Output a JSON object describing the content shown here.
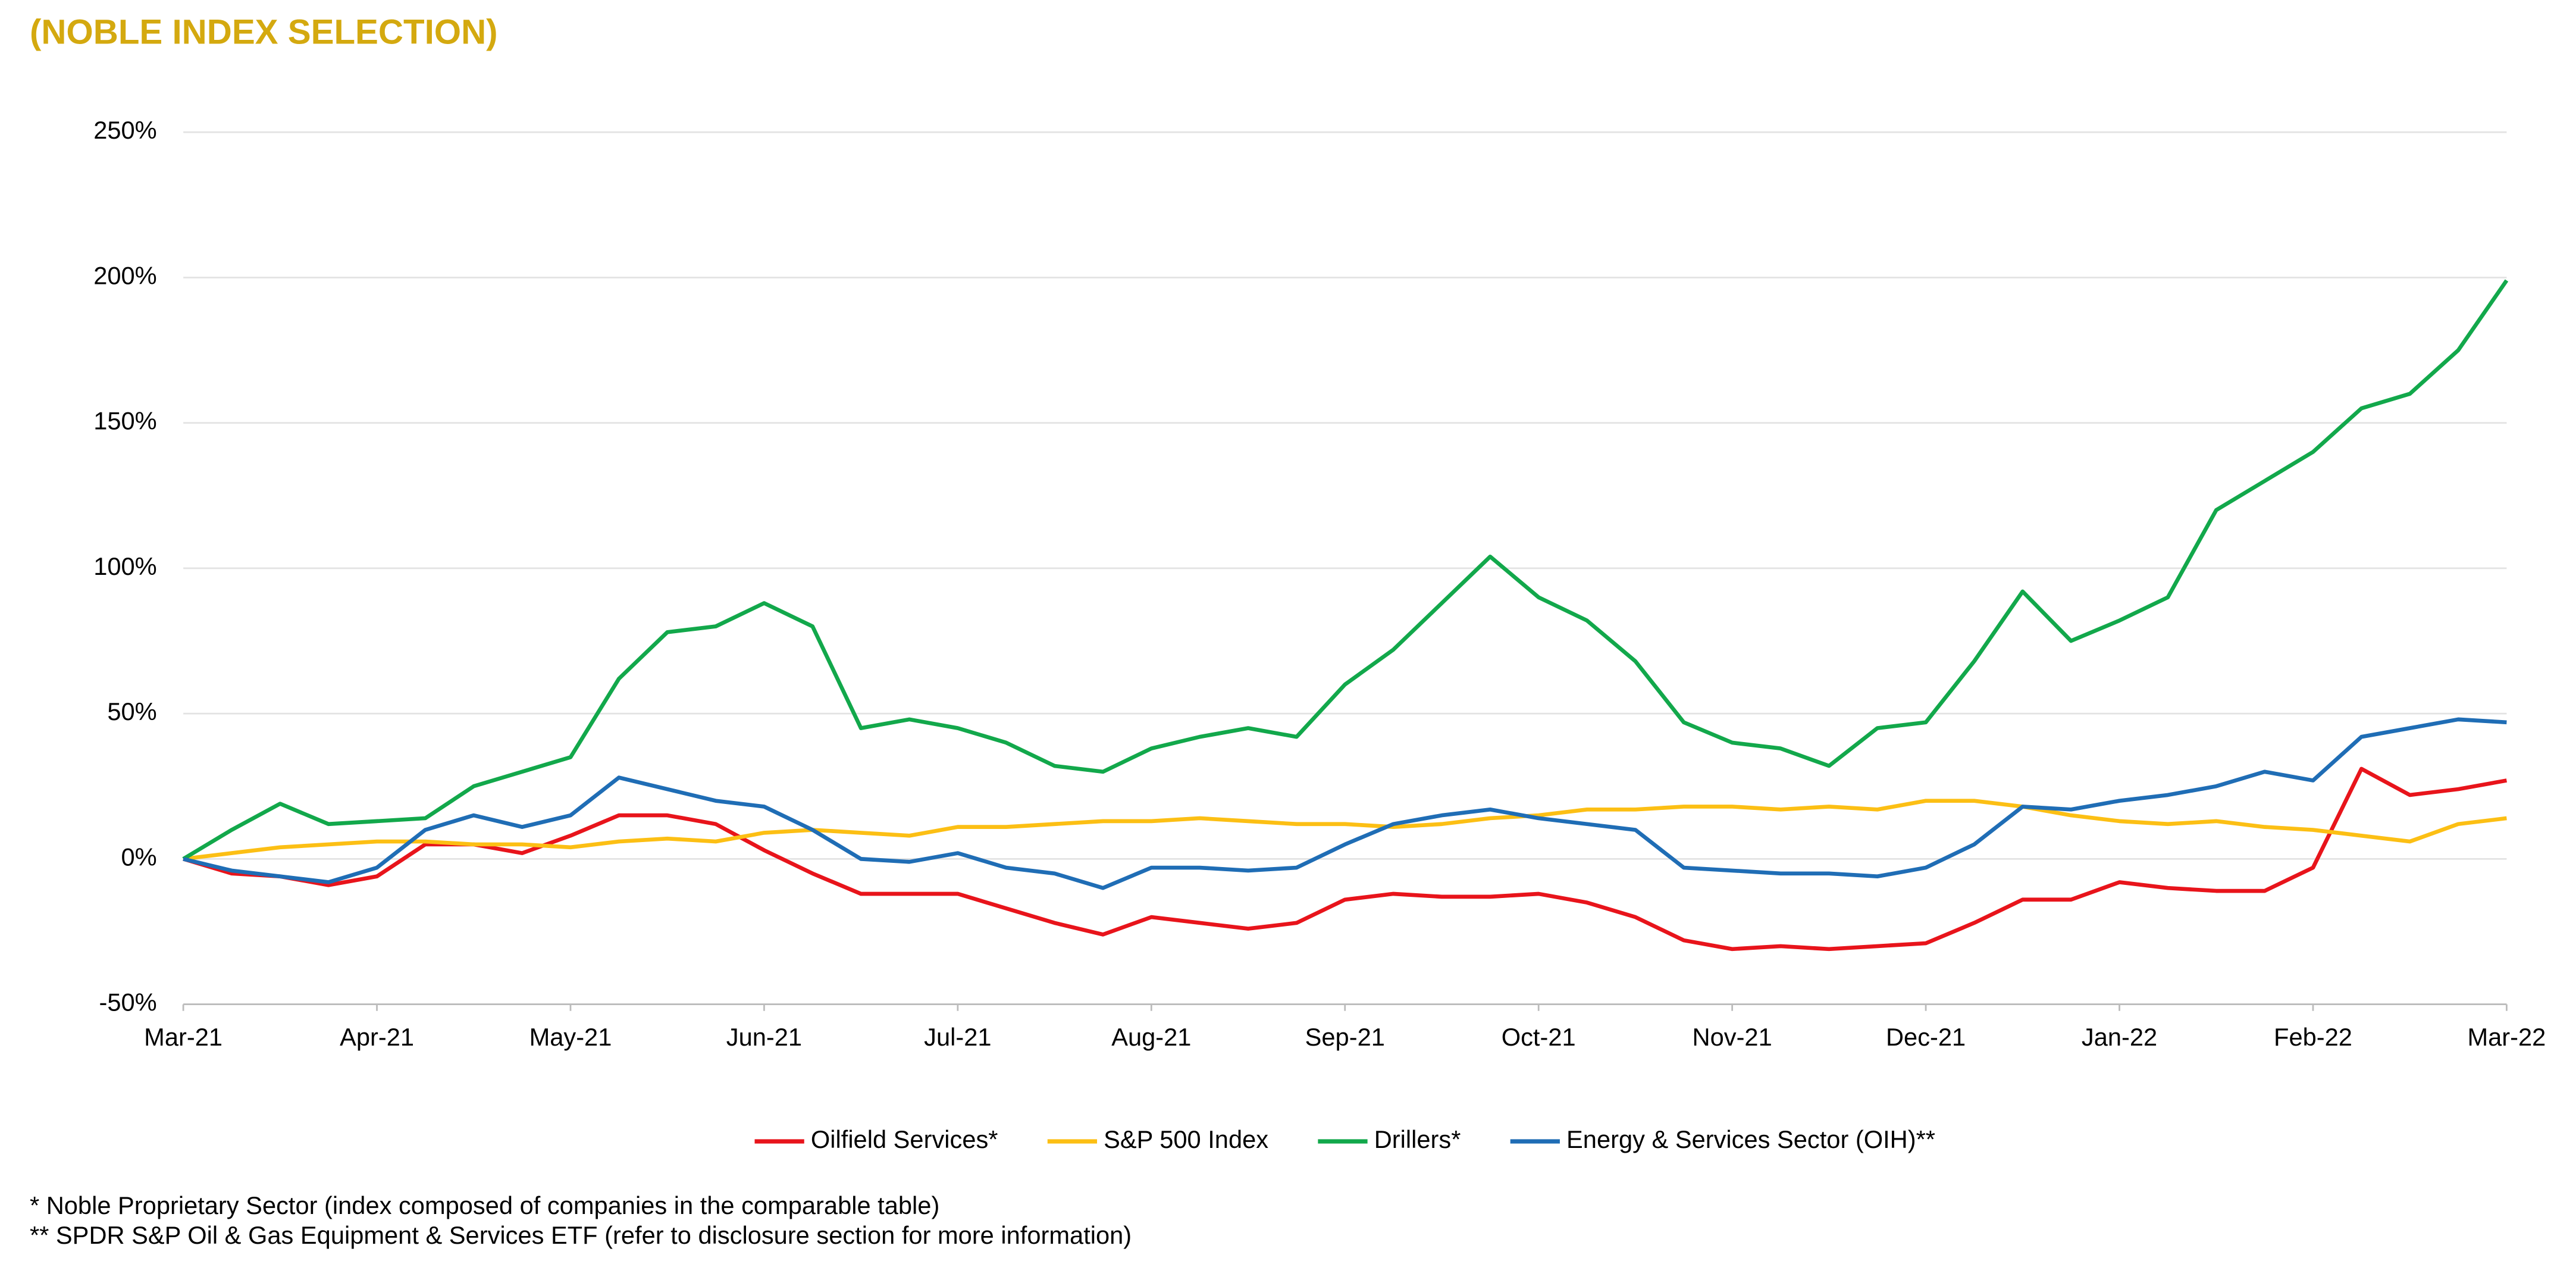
{
  "chart_data": {
    "type": "line",
    "title": "(NOBLE INDEX SELECTION)",
    "x": [
      0,
      0.25,
      0.5,
      0.75,
      1,
      1.25,
      1.5,
      1.75,
      2,
      2.25,
      2.5,
      2.75,
      3,
      3.25,
      3.5,
      3.75,
      4,
      4.25,
      4.5,
      4.75,
      5,
      5.25,
      5.5,
      5.75,
      6,
      6.25,
      6.5,
      6.75,
      7,
      7.25,
      7.5,
      7.75,
      8,
      8.25,
      8.5,
      8.75,
      9,
      9.25,
      9.5,
      9.75,
      10,
      10.25,
      10.5,
      10.75,
      11,
      11.25,
      11.5,
      11.75,
      12
    ],
    "xlim": [
      0,
      12
    ],
    "xticks": [
      {
        "value": 0,
        "label": "Mar-21"
      },
      {
        "value": 1,
        "label": "Apr-21"
      },
      {
        "value": 2,
        "label": "May-21"
      },
      {
        "value": 3,
        "label": "Jun-21"
      },
      {
        "value": 4,
        "label": "Jul-21"
      },
      {
        "value": 5,
        "label": "Aug-21"
      },
      {
        "value": 6,
        "label": "Sep-21"
      },
      {
        "value": 7,
        "label": "Oct-21"
      },
      {
        "value": 8,
        "label": "Nov-21"
      },
      {
        "value": 9,
        "label": "Dec-21"
      },
      {
        "value": 10,
        "label": "Jan-22"
      },
      {
        "value": 11,
        "label": "Feb-22"
      },
      {
        "value": 12,
        "label": "Mar-22"
      }
    ],
    "ylim": [
      -50,
      250
    ],
    "yticks": [
      {
        "value": -50,
        "label": "-50%"
      },
      {
        "value": 0,
        "label": "0%"
      },
      {
        "value": 50,
        "label": "50%"
      },
      {
        "value": 100,
        "label": "100%"
      },
      {
        "value": 150,
        "label": "150%"
      },
      {
        "value": 200,
        "label": "200%"
      },
      {
        "value": 250,
        "label": "250%"
      }
    ],
    "grid": true,
    "legend": "bottom",
    "series": [
      {
        "name": "Oilfield Services*",
        "color": "#e8141b",
        "values": [
          0,
          -5,
          -6,
          -9,
          -6,
          5,
          5,
          2,
          8,
          15,
          15,
          12,
          3,
          -5,
          -12,
          -12,
          -12,
          -17,
          -22,
          -26,
          -20,
          -22,
          -24,
          -22,
          -14,
          -12,
          -13,
          -13,
          -12,
          -15,
          -20,
          -28,
          -31,
          -30,
          -31,
          -30,
          -29,
          -22,
          -14,
          -14,
          -8,
          -10,
          -11,
          -11,
          -3,
          31,
          22,
          24,
          27
        ]
      },
      {
        "name": "S&P 500 Index",
        "color": "#fcbf14",
        "values": [
          0,
          2,
          4,
          5,
          6,
          6,
          5,
          5,
          4,
          6,
          7,
          6,
          9,
          10,
          9,
          8,
          11,
          11,
          12,
          13,
          13,
          14,
          13,
          12,
          12,
          11,
          12,
          14,
          15,
          17,
          17,
          18,
          18,
          17,
          18,
          17,
          20,
          20,
          18,
          15,
          13,
          12,
          13,
          11,
          10,
          8,
          6,
          12,
          14
        ]
      },
      {
        "name": "Drillers*",
        "color": "#12a84b",
        "values": [
          0,
          10,
          19,
          12,
          13,
          14,
          25,
          30,
          35,
          62,
          78,
          80,
          88,
          80,
          45,
          48,
          45,
          40,
          32,
          30,
          38,
          42,
          45,
          42,
          60,
          72,
          88,
          104,
          90,
          82,
          68,
          47,
          40,
          38,
          32,
          45,
          47,
          68,
          92,
          75,
          82,
          90,
          120,
          130,
          140,
          155,
          160,
          175,
          199
        ]
      },
      {
        "name": "Energy & Services Sector (OIH)**",
        "color": "#1f6db5",
        "values": [
          0,
          -4,
          -6,
          -8,
          -3,
          10,
          15,
          11,
          15,
          28,
          24,
          20,
          18,
          10,
          0,
          -1,
          2,
          -3,
          -5,
          -10,
          -3,
          -3,
          -4,
          -3,
          5,
          12,
          15,
          17,
          14,
          12,
          10,
          -3,
          -4,
          -5,
          -5,
          -6,
          -3,
          5,
          18,
          17,
          20,
          22,
          25,
          30,
          27,
          42,
          45,
          48,
          47
        ]
      }
    ],
    "footnotes": [
      "* Noble Proprietary Sector (index composed of companies in the comparable table)",
      "** SPDR S&P Oil & Gas Equipment & Services ETF (refer to disclosure section for more information)"
    ]
  }
}
